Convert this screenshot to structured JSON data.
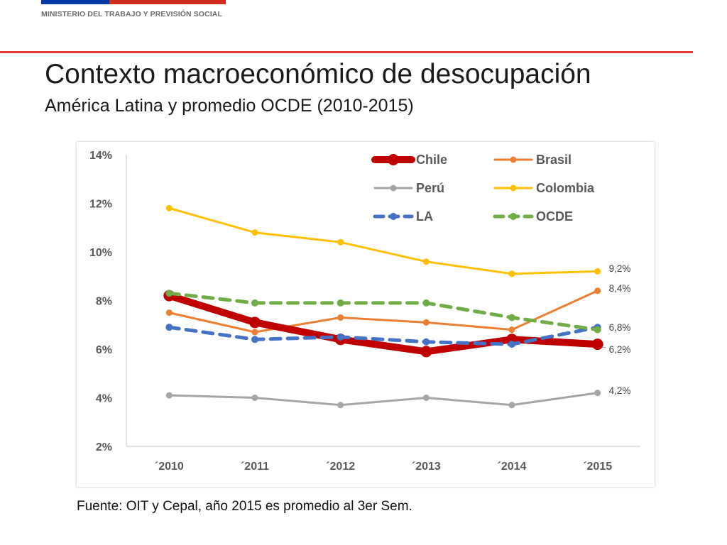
{
  "header": {
    "ministry": "MINISTERIO DEL TRABAJO Y PREVISIÓN SOCIAL",
    "flag_colors": [
      "#0039a6",
      "#d52b1e"
    ],
    "line_color": "#e0393a"
  },
  "slide": {
    "title": "Contexto macroeconómico de desocupación",
    "subtitle": "América Latina y promedio OCDE (2010-2015)",
    "source": "Fuente: OIT y Cepal, año 2015 es promedio al 3er Sem."
  },
  "chart_data": {
    "type": "line",
    "title": "",
    "xlabel": "",
    "ylabel": "",
    "categories": [
      "´2010",
      "´2011",
      "´2012",
      "´2013",
      "´2014",
      "´2015"
    ],
    "ylim": [
      2,
      14
    ],
    "yticks": [
      2,
      4,
      6,
      8,
      10,
      12,
      14
    ],
    "ytick_labels": [
      "2%",
      "4%",
      "6%",
      "8%",
      "10%",
      "12%",
      "14%"
    ],
    "grid": false,
    "legend_position": "top",
    "series": [
      {
        "name": "Chile",
        "values": [
          8.2,
          7.1,
          6.4,
          5.9,
          6.4,
          6.2
        ],
        "color": "#c00000",
        "style": "solid-thick",
        "end_label": "6,2%"
      },
      {
        "name": "Brasil",
        "values": [
          7.5,
          6.7,
          7.3,
          7.1,
          6.8,
          8.4
        ],
        "color": "#ed7d31",
        "style": "solid",
        "end_label": "8,4%"
      },
      {
        "name": "Perú",
        "values": [
          4.1,
          4.0,
          3.7,
          4.0,
          3.7,
          4.2
        ],
        "color": "#a5a5a5",
        "style": "solid",
        "end_label": "4,2%"
      },
      {
        "name": "Colombia",
        "values": [
          11.8,
          10.8,
          10.4,
          9.6,
          9.1,
          9.2
        ],
        "color": "#ffc000",
        "style": "solid",
        "end_label": "9,2%"
      },
      {
        "name": "LA",
        "values": [
          6.9,
          6.4,
          6.5,
          6.3,
          6.2,
          6.9
        ],
        "color": "#4472c4",
        "style": "dashed",
        "end_label": ""
      },
      {
        "name": "OCDE",
        "values": [
          8.3,
          7.9,
          7.9,
          7.9,
          7.3,
          6.8
        ],
        "color": "#70ad47",
        "style": "dashed",
        "end_label": "6,8%"
      }
    ]
  }
}
